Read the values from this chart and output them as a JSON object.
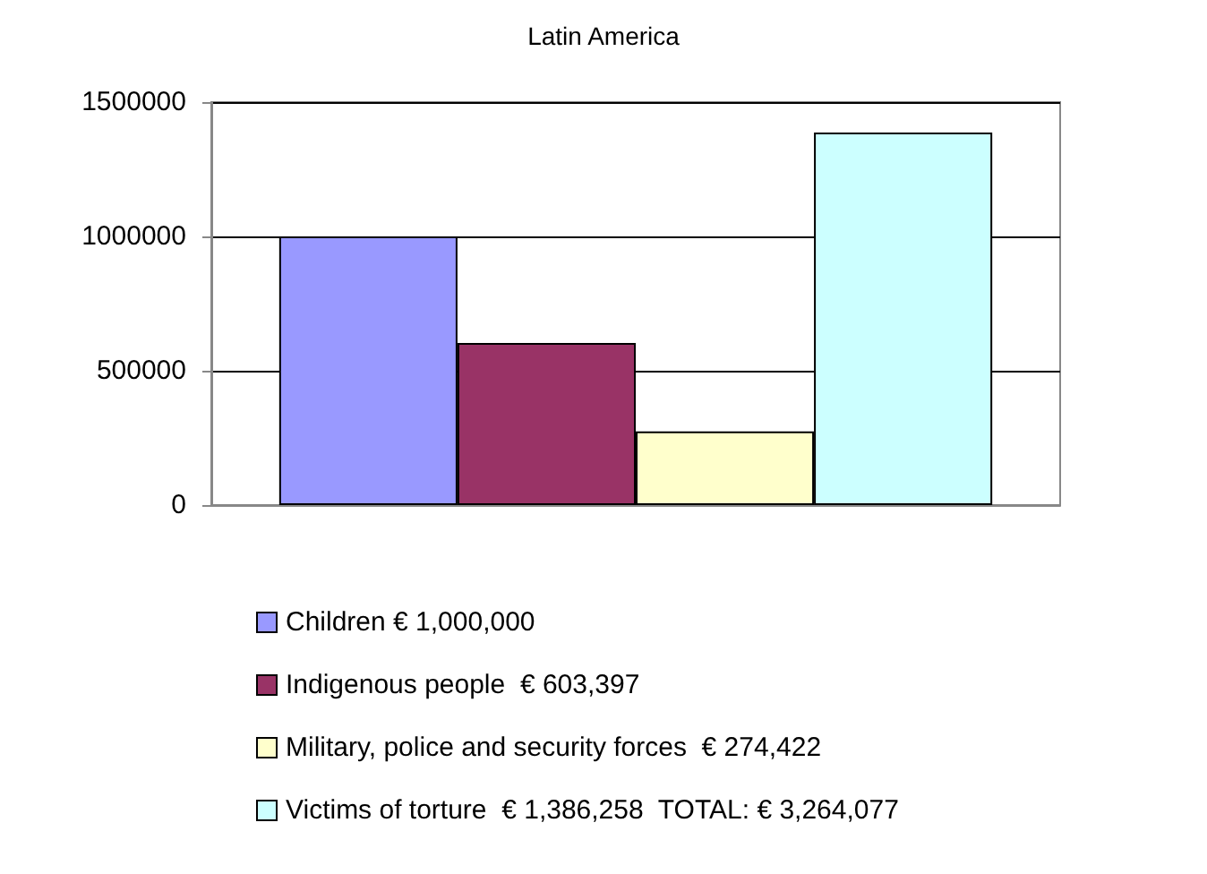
{
  "chart_data": {
    "type": "bar",
    "title": "Latin America",
    "categories": [
      null
    ],
    "series": [
      {
        "name": "Children € 1,000,000",
        "color": "#9999ff",
        "values": [
          1000000
        ]
      },
      {
        "name": "Indigenous people  € 603,397",
        "color": "#993366",
        "values": [
          603397
        ]
      },
      {
        "name": "Military, police and security forces  € 274,422",
        "color": "#ffffcc",
        "values": [
          274422
        ]
      },
      {
        "name": "Victims of torture  € 1,386,258  TOTAL: € 3,264,077",
        "color": "#ccffff",
        "values": [
          1386258
        ]
      }
    ],
    "ylim": [
      0,
      1500000
    ],
    "yticks": [
      0,
      500000,
      1000000,
      1500000
    ],
    "grid": "y",
    "legend": "bottom"
  }
}
